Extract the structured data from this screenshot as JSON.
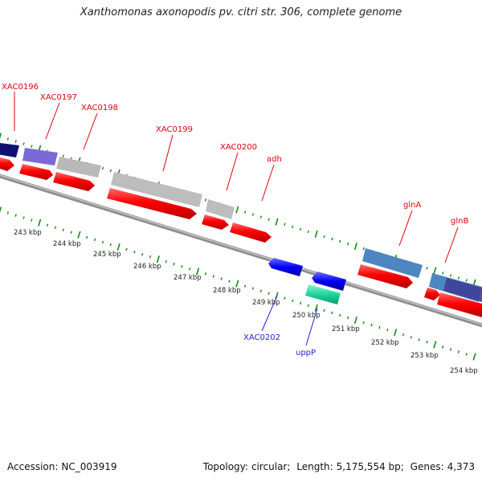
{
  "title": "Xanthomonas axonopodis pv. citri str. 306, complete genome",
  "footer": {
    "accession_label": "Accession:",
    "accession": "NC_003919",
    "topology_label": "Topology:",
    "topology": "circular;",
    "length_label": "Length:",
    "length": "5,175,554 bp;",
    "genes_label": "Genes:",
    "genes": "4,373"
  },
  "colors": {
    "background": "#ffffff",
    "gene_label": "#e0000b",
    "reverse_label": "#1f1fd6",
    "tick": "#138a13",
    "forward_arrow": "#ff0000",
    "reverse_arrow": "#0000ff",
    "uppP_arrow": "#1fd59a",
    "backbone": "#8f8f8f"
  },
  "kbp_ticks": [
    "243 kbp",
    "244 kbp",
    "245 kbp",
    "246 kbp",
    "247 kbp",
    "248 kbp",
    "249 kbp",
    "250 kbp",
    "251 kbp",
    "252 kbp",
    "253 kbp",
    "254 kbp"
  ],
  "genes_top": [
    {
      "name": "XAC0196",
      "color": "#e0000b"
    },
    {
      "name": "XAC0197",
      "color": "#e0000b"
    },
    {
      "name": "XAC0198",
      "color": "#e0000b"
    },
    {
      "name": "XAC0199",
      "color": "#e0000b"
    },
    {
      "name": "XAC0200",
      "color": "#e0000b"
    },
    {
      "name": "adh",
      "color": "#e0000b"
    },
    {
      "name": "glnA",
      "color": "#e0000b"
    },
    {
      "name": "glnB",
      "color": "#e0000b"
    }
  ],
  "genes_bottom": [
    {
      "name": "XAC0202",
      "color": "#1f1fd6"
    },
    {
      "name": "uppP",
      "color": "#1f1fd6"
    }
  ]
}
